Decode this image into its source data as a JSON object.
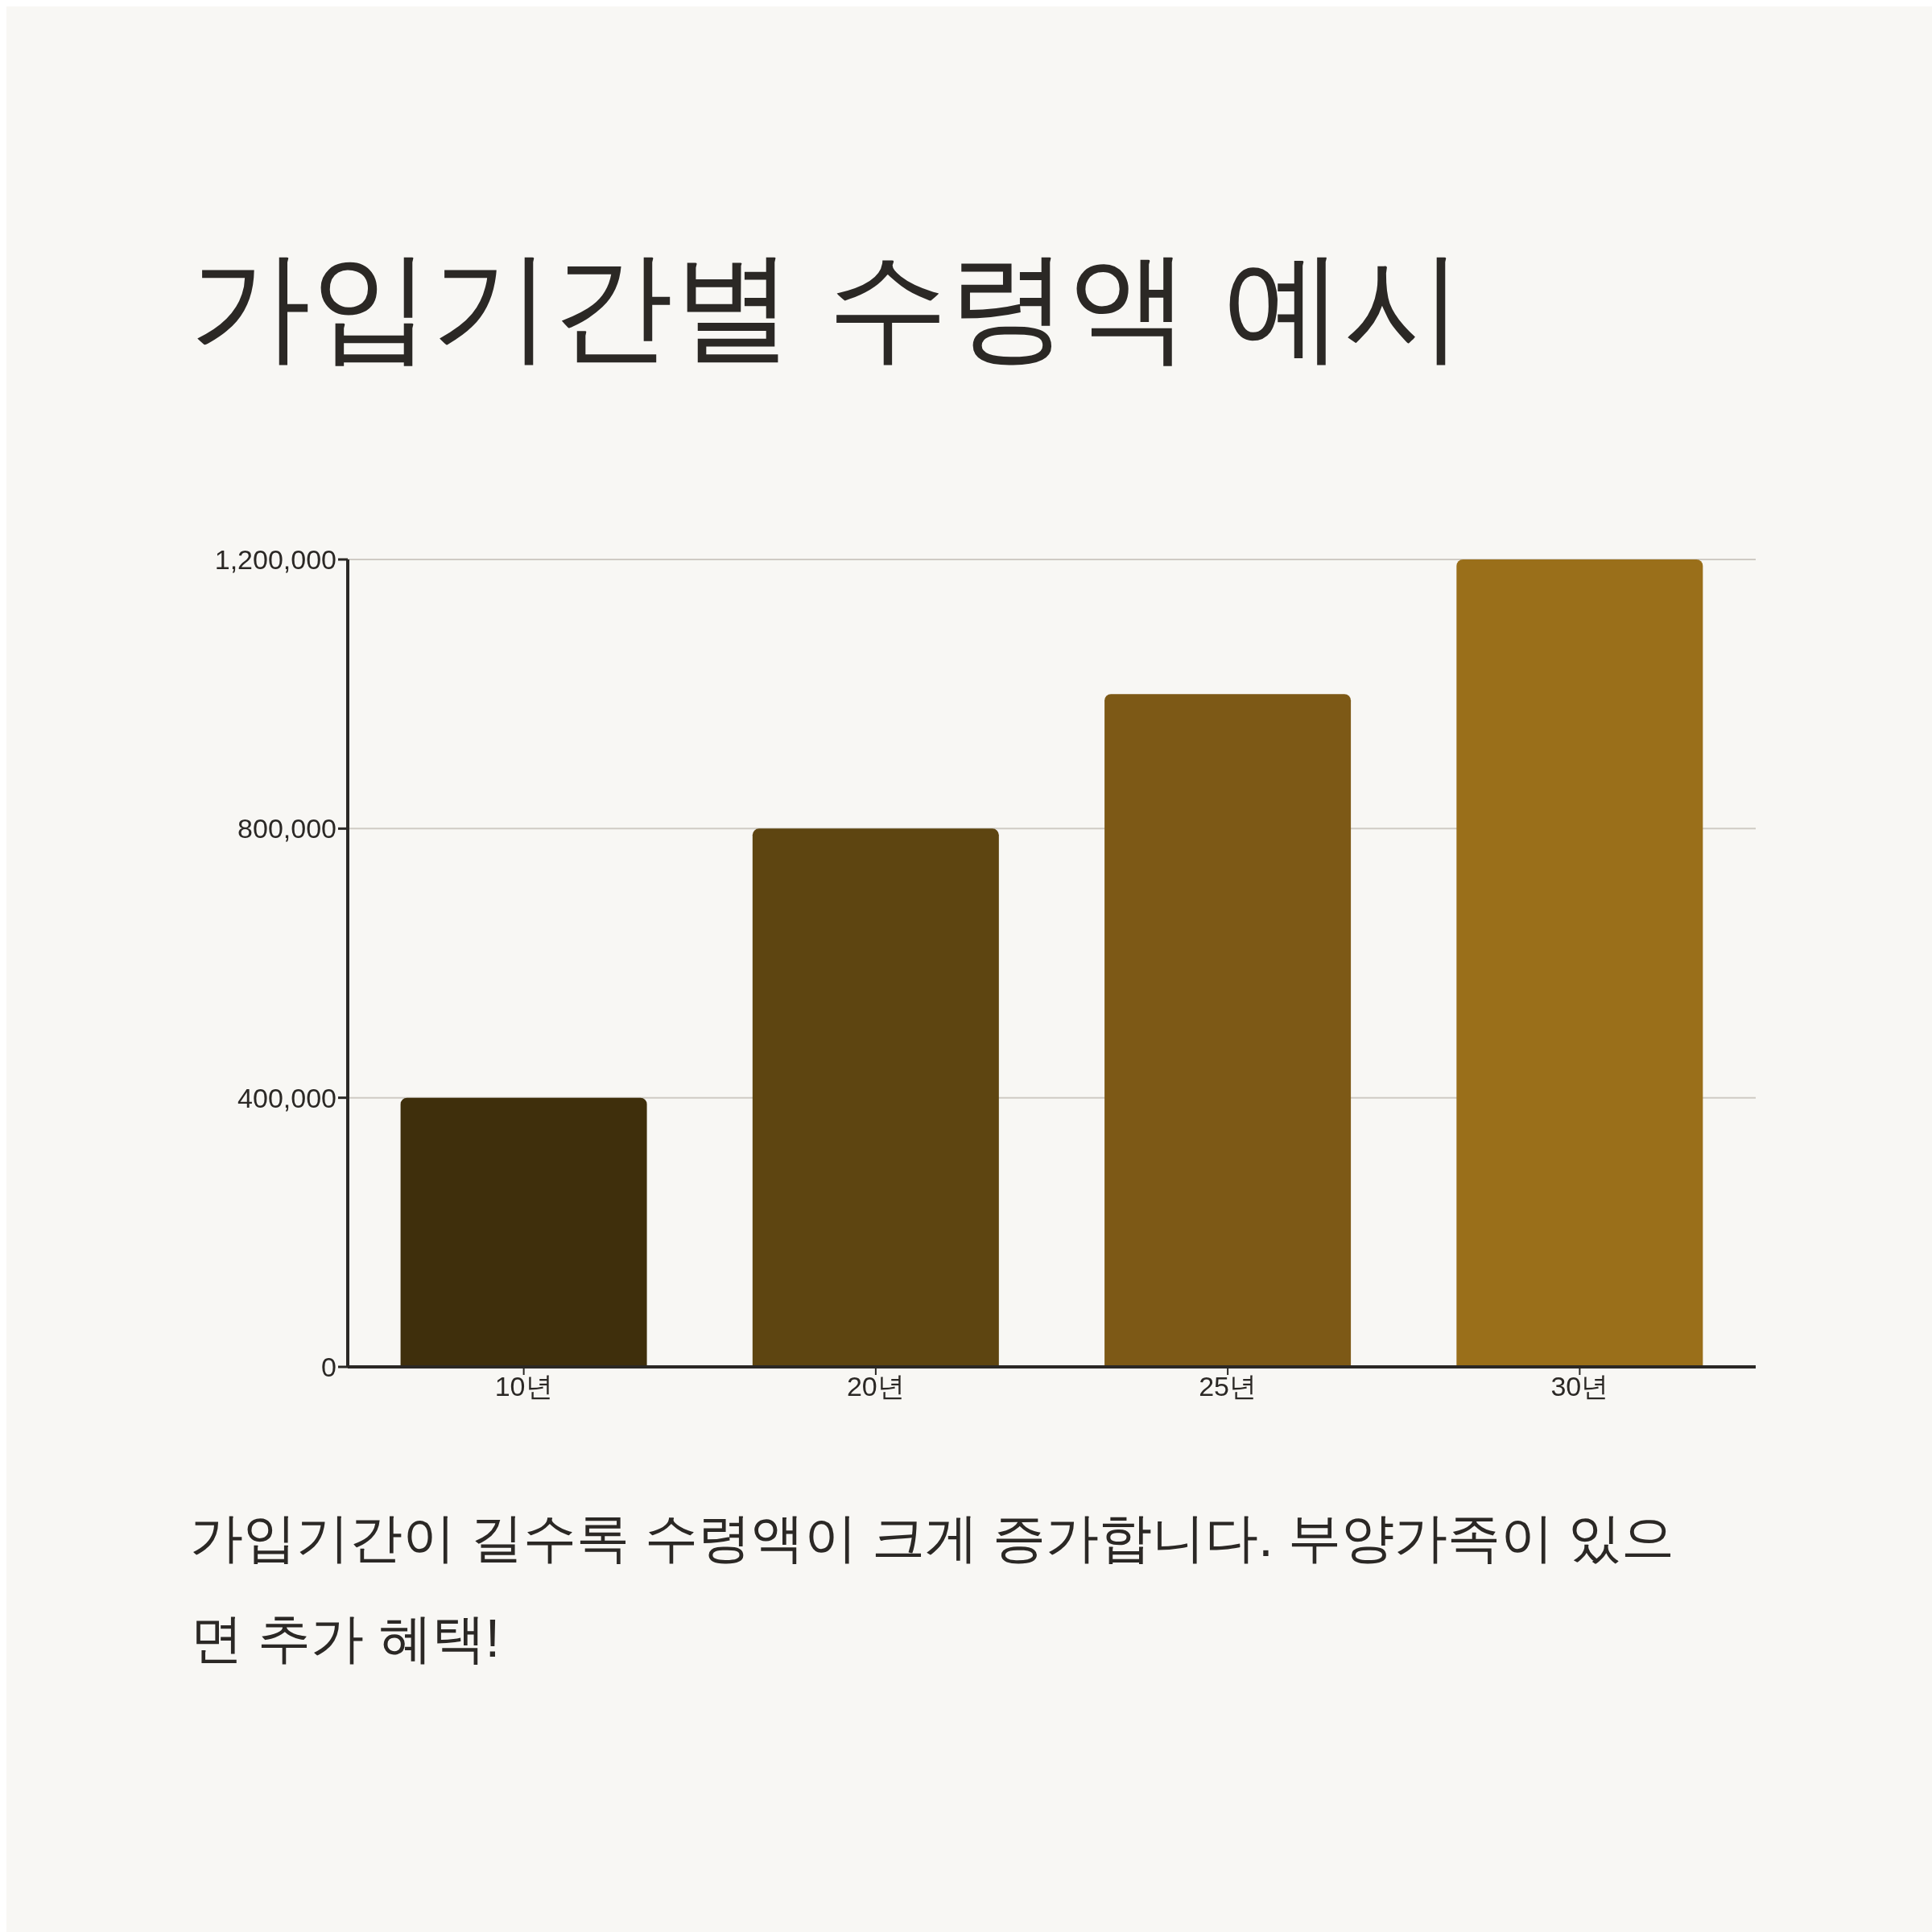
{
  "chart_data": {
    "type": "bar",
    "title": "가입기간별 수령액 예시",
    "categories": [
      "10년",
      "20년",
      "25년",
      "30년"
    ],
    "values": [
      400000,
      800000,
      1000000,
      1200000
    ],
    "colors": [
      "#3f2f0c",
      "#5e4511",
      "#7d5916",
      "#9a6f1a"
    ],
    "ylim": [
      0,
      1200000
    ],
    "yticks": [
      0,
      {
        "value": 400000,
        "label": "400,000"
      },
      {
        "value": 800000,
        "label": "800,000"
      },
      {
        "value": 1200000,
        "label": "1,200,000"
      }
    ],
    "grid": "y",
    "annotations": [
      "가입기간이 길수록 수령액이 크게 증가합니다. 부양가족이 있으면 추가 혜택!"
    ]
  }
}
